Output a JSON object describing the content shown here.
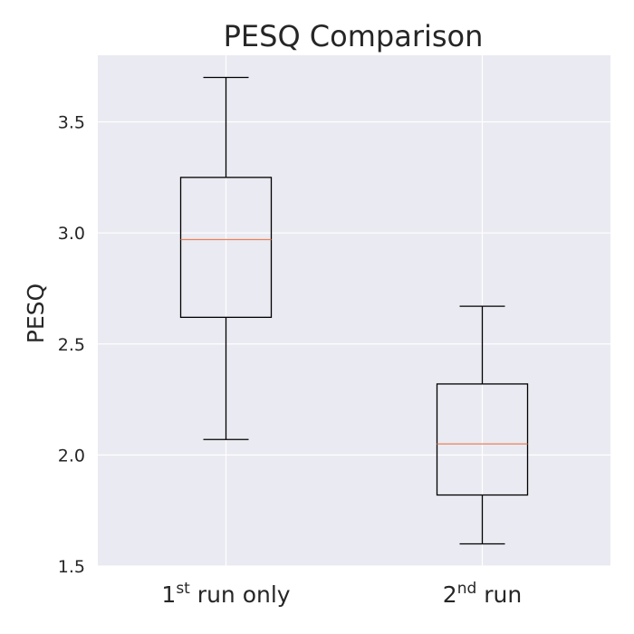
{
  "chart_data": {
    "type": "box",
    "title": "PESQ Comparison",
    "xlabel": "",
    "ylabel": "PESQ",
    "ylim": [
      1.5,
      3.8
    ],
    "yticks": [
      "1.5",
      "2.0",
      "2.5",
      "3.0",
      "3.5"
    ],
    "grid": true,
    "categories": [
      {
        "base": "1",
        "sup": "st",
        "rest": " run only"
      },
      {
        "base": "2",
        "sup": "nd",
        "rest": " run"
      }
    ],
    "boxes": [
      {
        "whisker_low": 2.07,
        "q1": 2.62,
        "median": 2.97,
        "q3": 3.25,
        "whisker_high": 3.7
      },
      {
        "whisker_low": 1.6,
        "q1": 1.82,
        "median": 2.05,
        "q3": 2.32,
        "whisker_high": 2.67
      }
    ],
    "colors": {
      "background": "#eaeaf2",
      "grid": "#ffffff",
      "box": "#000000",
      "median": "#e8825a"
    }
  }
}
